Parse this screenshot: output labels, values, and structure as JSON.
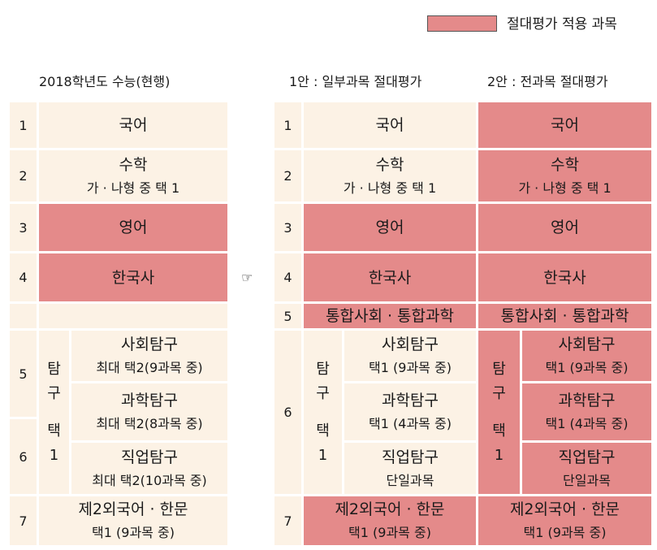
{
  "legend": {
    "label": "절대평가 적용 과목",
    "color": "#e48a8a"
  },
  "headers": {
    "left": "2018학년도 수능(현행)",
    "plan1": "1안 : 일부과목 절대평가",
    "plan2": "2안 : 전과목 절대평가"
  },
  "arrow": "☞",
  "nums": {
    "n1": "1",
    "n2": "2",
    "n3": "3",
    "n4": "4",
    "n5": "5",
    "n6": "6",
    "n7": "7"
  },
  "left": {
    "korean": "국어",
    "math": "수학",
    "math_sub": "가 · 나형 중 택 1",
    "english": "영어",
    "history": "한국사",
    "elective_v": [
      "탐",
      "구",
      "",
      "택",
      "1"
    ],
    "social": "사회탐구",
    "social_sub": "최대 택2(9과목 중)",
    "science": "과학탐구",
    "science_sub": "최대 택2(8과목 중)",
    "vocational": "직업탐구",
    "vocational_sub": "최대 택2(10과목 중)",
    "foreign": "제2외국어  ·  한문",
    "foreign_sub": "택1 (9과목 중)"
  },
  "plan1": {
    "korean": "국어",
    "math": "수학",
    "math_sub": "가 · 나형 중 택 1",
    "english": "영어",
    "history": "한국사",
    "integrated": "통합사회 · 통합과학",
    "elective_v": [
      "탐",
      "구",
      "",
      "택",
      "1"
    ],
    "social": "사회탐구",
    "social_sub": "택1 (9과목 중)",
    "science": "과학탐구",
    "science_sub": "택1 (4과목 중)",
    "vocational": "직업탐구",
    "vocational_sub": "단일과목",
    "foreign": "제2외국어  ·  한문",
    "foreign_sub": "택1 (9과목 중)"
  },
  "plan2": {
    "korean": "국어",
    "math": "수학",
    "math_sub": "가 · 나형 중 택 1",
    "english": "영어",
    "history": "한국사",
    "integrated": "통합사회 · 통합과학",
    "elective_v": [
      "탐",
      "구",
      "",
      "택",
      "1"
    ],
    "social": "사회탐구",
    "social_sub": "택1 (9과목 중)",
    "science": "과학탐구",
    "science_sub": "택1 (4과목 중)",
    "vocational": "직업탐구",
    "vocational_sub": "단일과목",
    "foreign": "제2외국어  ·  한문",
    "foreign_sub": "택1 (9과목 중)"
  }
}
